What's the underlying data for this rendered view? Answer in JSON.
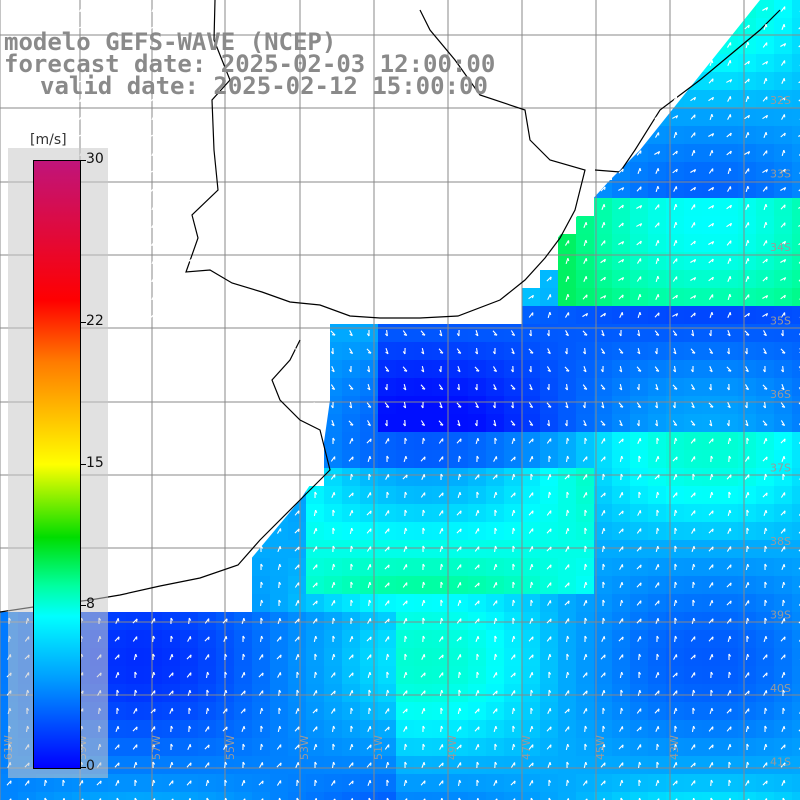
{
  "header": {
    "line1": "modelo GEFS-WAVE (NCEP)",
    "line2": "forecast date: 2025-02-03 12:00:00",
    "line3": "valid date: 2025-02-12 15:00:00"
  },
  "legend": {
    "unit": "[m/s]",
    "ticks": [
      {
        "label": "30",
        "value": 30
      },
      {
        "label": "22",
        "value": 22
      },
      {
        "label": "15",
        "value": 15
      },
      {
        "label": "8",
        "value": 8
      },
      {
        "label": "0",
        "value": 0
      }
    ],
    "range": [
      0,
      30
    ],
    "colors": [
      "#0000ff",
      "#00a0ff",
      "#00ffff",
      "#00ffa0",
      "#00dd00",
      "#ffff00",
      "#ff7a00",
      "#ff0000",
      "#c0147a"
    ]
  },
  "map": {
    "land_color": "#ffffff",
    "coast_color": "#000000",
    "grid_color": "#888888",
    "arrow_color": "#ffffff",
    "lon_labels": [
      "61W",
      "59W",
      "57W",
      "55W",
      "53W",
      "51W",
      "49W",
      "47W",
      "45W",
      "43W"
    ],
    "lat_labels": [
      "32S",
      "33S",
      "34S",
      "35S",
      "36S",
      "37S",
      "38S",
      "39S",
      "40S",
      "41S"
    ]
  }
}
